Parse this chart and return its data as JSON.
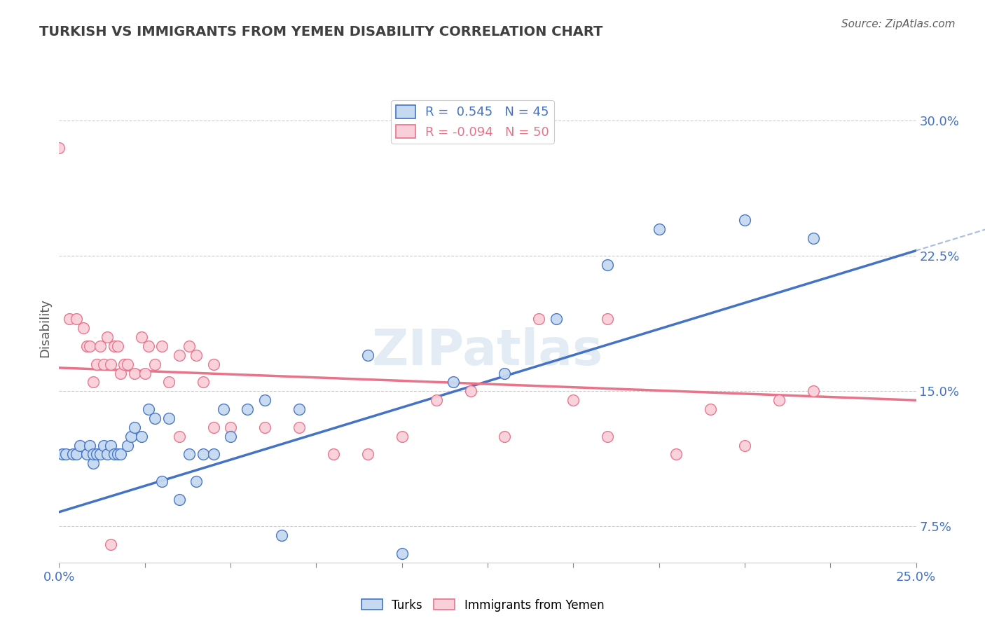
{
  "title": "TURKISH VS IMMIGRANTS FROM YEMEN DISABILITY CORRELATION CHART",
  "source": "Source: ZipAtlas.com",
  "ylabel": "Disability",
  "x_min": 0.0,
  "x_max": 0.25,
  "y_min": 0.055,
  "y_max": 0.315,
  "x_ticks": [
    0.0,
    0.025,
    0.05,
    0.075,
    0.1,
    0.125,
    0.15,
    0.175,
    0.2,
    0.225,
    0.25
  ],
  "y_ticks": [
    0.075,
    0.15,
    0.225,
    0.3
  ],
  "y_tick_labels": [
    "7.5%",
    "15.0%",
    "22.5%",
    "30.0%"
  ],
  "legend_r1": "R =  0.545",
  "legend_n1": "N = 45",
  "legend_r2": "R = -0.094",
  "legend_n2": "N = 50",
  "legend_label1": "Turks",
  "legend_label2": "Immigrants from Yemen",
  "blue_fill": "#C5D9F1",
  "pink_fill": "#F9D0DA",
  "blue_edge": "#4472C4",
  "pink_edge": "#E8738A",
  "blue_line": "#4472C4",
  "pink_line": "#E8738A",
  "title_color": "#404040",
  "source_color": "#606060",
  "watermark": "ZIPatlas",
  "blue_trend_x0": 0.0,
  "blue_trend_y0": 0.083,
  "blue_trend_x1": 0.25,
  "blue_trend_y1": 0.228,
  "pink_trend_x0": 0.0,
  "pink_trend_y0": 0.163,
  "pink_trend_x1": 0.25,
  "pink_trend_y1": 0.145,
  "turks_x": [
    0.001,
    0.002,
    0.004,
    0.005,
    0.006,
    0.008,
    0.009,
    0.01,
    0.01,
    0.011,
    0.012,
    0.013,
    0.014,
    0.015,
    0.016,
    0.017,
    0.018,
    0.02,
    0.021,
    0.022,
    0.024,
    0.026,
    0.028,
    0.03,
    0.032,
    0.035,
    0.038,
    0.04,
    0.042,
    0.045,
    0.048,
    0.05,
    0.055,
    0.06,
    0.065,
    0.07,
    0.09,
    0.1,
    0.115,
    0.13,
    0.145,
    0.16,
    0.175,
    0.2,
    0.22
  ],
  "turks_y": [
    0.115,
    0.115,
    0.115,
    0.115,
    0.12,
    0.115,
    0.12,
    0.11,
    0.115,
    0.115,
    0.115,
    0.12,
    0.115,
    0.12,
    0.115,
    0.115,
    0.115,
    0.12,
    0.125,
    0.13,
    0.125,
    0.14,
    0.135,
    0.1,
    0.135,
    0.09,
    0.115,
    0.1,
    0.115,
    0.115,
    0.14,
    0.125,
    0.14,
    0.145,
    0.07,
    0.14,
    0.17,
    0.06,
    0.155,
    0.16,
    0.19,
    0.22,
    0.24,
    0.245,
    0.235
  ],
  "yemen_x": [
    0.0,
    0.003,
    0.005,
    0.007,
    0.008,
    0.009,
    0.01,
    0.011,
    0.012,
    0.013,
    0.014,
    0.015,
    0.016,
    0.017,
    0.018,
    0.019,
    0.02,
    0.022,
    0.024,
    0.026,
    0.028,
    0.03,
    0.032,
    0.035,
    0.038,
    0.04,
    0.042,
    0.045,
    0.05,
    0.06,
    0.07,
    0.08,
    0.09,
    0.1,
    0.11,
    0.12,
    0.13,
    0.15,
    0.16,
    0.18,
    0.19,
    0.2,
    0.21,
    0.22,
    0.015,
    0.025,
    0.035,
    0.045,
    0.14,
    0.16
  ],
  "yemen_y": [
    0.285,
    0.19,
    0.19,
    0.185,
    0.175,
    0.175,
    0.155,
    0.165,
    0.175,
    0.165,
    0.18,
    0.165,
    0.175,
    0.175,
    0.16,
    0.165,
    0.165,
    0.16,
    0.18,
    0.175,
    0.165,
    0.175,
    0.155,
    0.17,
    0.175,
    0.17,
    0.155,
    0.165,
    0.13,
    0.13,
    0.13,
    0.115,
    0.115,
    0.125,
    0.145,
    0.15,
    0.125,
    0.145,
    0.125,
    0.115,
    0.14,
    0.12,
    0.145,
    0.15,
    0.065,
    0.16,
    0.125,
    0.13,
    0.19,
    0.19
  ]
}
